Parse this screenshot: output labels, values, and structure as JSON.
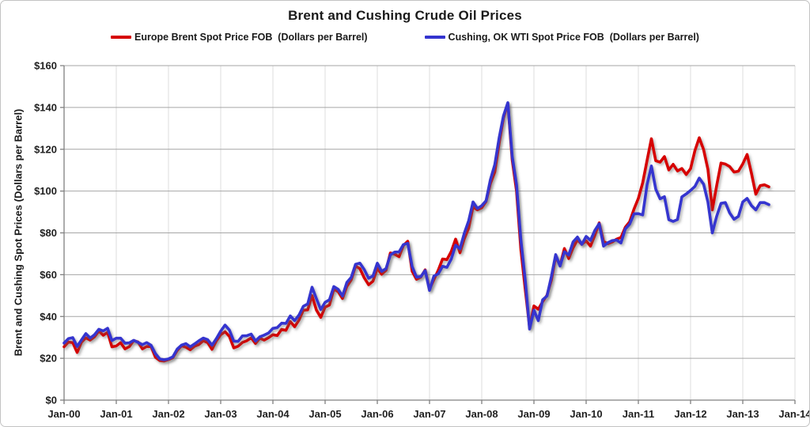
{
  "chart_data": {
    "type": "line",
    "title": "Brent and Cushing Crude Oil Prices",
    "ylabel": "Brent and Cushing Spot Prices (Dollars per Barrel)",
    "xlabel": "",
    "ylim": [
      0,
      160
    ],
    "y_ticks": [
      0,
      20,
      40,
      60,
      80,
      100,
      120,
      140,
      160
    ],
    "y_tick_labels": [
      "$0",
      "$20",
      "$40",
      "$60",
      "$80",
      "$100",
      "$120",
      "$140",
      "$160"
    ],
    "x_ticks": [
      "Jan-00",
      "Jan-01",
      "Jan-02",
      "Jan-03",
      "Jan-04",
      "Jan-05",
      "Jan-06",
      "Jan-07",
      "Jan-08",
      "Jan-09",
      "Jan-10",
      "Jan-11",
      "Jan-12",
      "Jan-13",
      "Jan-14"
    ],
    "x_unit": "one data point per month starting Jan-2000",
    "grid": true,
    "legend_position": "top",
    "series": [
      {
        "name": "Europe Brent Spot Price FOB  (Dollars per Barrel)",
        "color": "#D60000",
        "values": [
          25.5,
          27.8,
          27.5,
          22.8,
          27.7,
          29.8,
          28.7,
          30.3,
          33.1,
          31.0,
          32.5,
          25.5,
          25.9,
          27.5,
          24.5,
          25.6,
          28.5,
          27.8,
          24.5,
          25.7,
          25.6,
          20.5,
          18.9,
          18.7,
          19.4,
          20.3,
          23.7,
          26.0,
          25.3,
          24.1,
          25.8,
          26.6,
          28.4,
          27.5,
          24.3,
          28.3,
          31.3,
          32.7,
          30.5,
          25.0,
          25.8,
          27.6,
          28.4,
          29.8,
          27.1,
          29.6,
          28.7,
          29.9,
          31.3,
          30.9,
          33.8,
          33.4,
          37.6,
          35.1,
          38.3,
          43.0,
          43.2,
          50.0,
          43.1,
          39.6,
          44.5,
          45.5,
          53.1,
          51.9,
          48.6,
          54.4,
          57.5,
          64.1,
          62.9,
          58.5,
          55.2,
          56.9,
          63.0,
          60.2,
          62.1,
          70.4,
          69.8,
          68.6,
          74.0,
          76.0,
          61.7,
          57.8,
          58.8,
          62.3,
          53.0,
          57.6,
          62.1,
          67.5,
          67.2,
          71.1,
          77.0,
          70.5,
          77.2,
          82.3,
          92.5,
          91.0,
          92.0,
          95.0,
          103.6,
          109.1,
          122.8,
          135.0,
          142.0,
          115.0,
          100.0,
          72.0,
          53.0,
          35.0,
          45.0,
          43.5,
          47.0,
          50.2,
          57.3,
          68.6,
          64.4,
          72.5,
          67.7,
          72.8,
          76.7,
          74.5,
          76.2,
          73.7,
          78.8,
          84.8,
          75.9,
          74.8,
          75.6,
          77.0,
          77.8,
          82.7,
          85.3,
          91.4,
          96.5,
          104.0,
          114.6,
          125.0,
          114.5,
          113.8,
          116.5,
          110.1,
          112.8,
          109.6,
          110.8,
          107.9,
          110.7,
          119.3,
          125.5,
          119.8,
          110.3,
          91.0,
          102.6,
          113.4,
          112.9,
          111.7,
          109.1,
          109.5,
          113.0,
          117.5,
          108.5,
          98.5,
          102.6,
          103.0,
          102.0
        ]
      },
      {
        "name": "Cushing, OK WTI Spot Price FOB  (Dollars per Barrel)",
        "color": "#3434CF",
        "values": [
          27.3,
          29.4,
          29.9,
          25.7,
          28.8,
          31.8,
          29.7,
          31.3,
          33.9,
          33.1,
          34.4,
          28.5,
          29.6,
          29.6,
          27.2,
          27.4,
          28.6,
          27.6,
          26.5,
          27.5,
          26.2,
          22.2,
          19.7,
          19.3,
          19.7,
          20.7,
          24.4,
          26.3,
          27.0,
          25.5,
          26.9,
          28.4,
          29.7,
          28.9,
          26.3,
          29.4,
          33.0,
          35.9,
          33.5,
          28.2,
          28.1,
          30.7,
          30.8,
          31.6,
          28.3,
          30.3,
          31.1,
          32.1,
          34.3,
          34.7,
          36.8,
          36.7,
          40.3,
          38.0,
          40.7,
          44.9,
          46.0,
          54.0,
          48.5,
          43.3,
          46.8,
          48.0,
          54.3,
          53.0,
          49.8,
          56.3,
          58.7,
          65.0,
          65.5,
          62.4,
          58.3,
          59.4,
          65.5,
          61.6,
          62.9,
          69.4,
          70.8,
          70.9,
          74.4,
          75.0,
          63.9,
          58.9,
          59.1,
          62.0,
          52.5,
          59.3,
          60.4,
          64.0,
          63.5,
          67.5,
          74.1,
          72.4,
          79.9,
          85.8,
          94.8,
          91.7,
          93.0,
          95.4,
          105.5,
          112.6,
          125.4,
          136.0,
          142.3,
          116.7,
          103.0,
          76.6,
          57.3,
          34.0,
          43.0,
          38.0,
          48.0,
          49.8,
          59.0,
          69.6,
          64.1,
          71.0,
          69.4,
          75.7,
          78.0,
          74.5,
          78.3,
          76.4,
          81.2,
          84.4,
          73.7,
          75.3,
          76.3,
          76.6,
          75.2,
          81.9,
          84.2,
          89.1,
          89.2,
          88.6,
          103.0,
          112.0,
          100.9,
          96.3,
          97.3,
          86.3,
          85.5,
          86.4,
          97.2,
          98.6,
          100.3,
          102.2,
          106.2,
          103.3,
          94.7,
          80.0,
          87.9,
          94.1,
          94.5,
          89.5,
          86.5,
          87.9,
          94.8,
          96.5,
          93.0,
          91.0,
          94.5,
          94.5,
          93.5
        ]
      }
    ],
    "colors": {
      "grid_h": "#A6A6A6",
      "grid_v": "#DCDCDC",
      "axis": "#808080",
      "text": "#1F1F1F",
      "background": "#FFFFFF",
      "border": "#C3C3C3"
    }
  }
}
